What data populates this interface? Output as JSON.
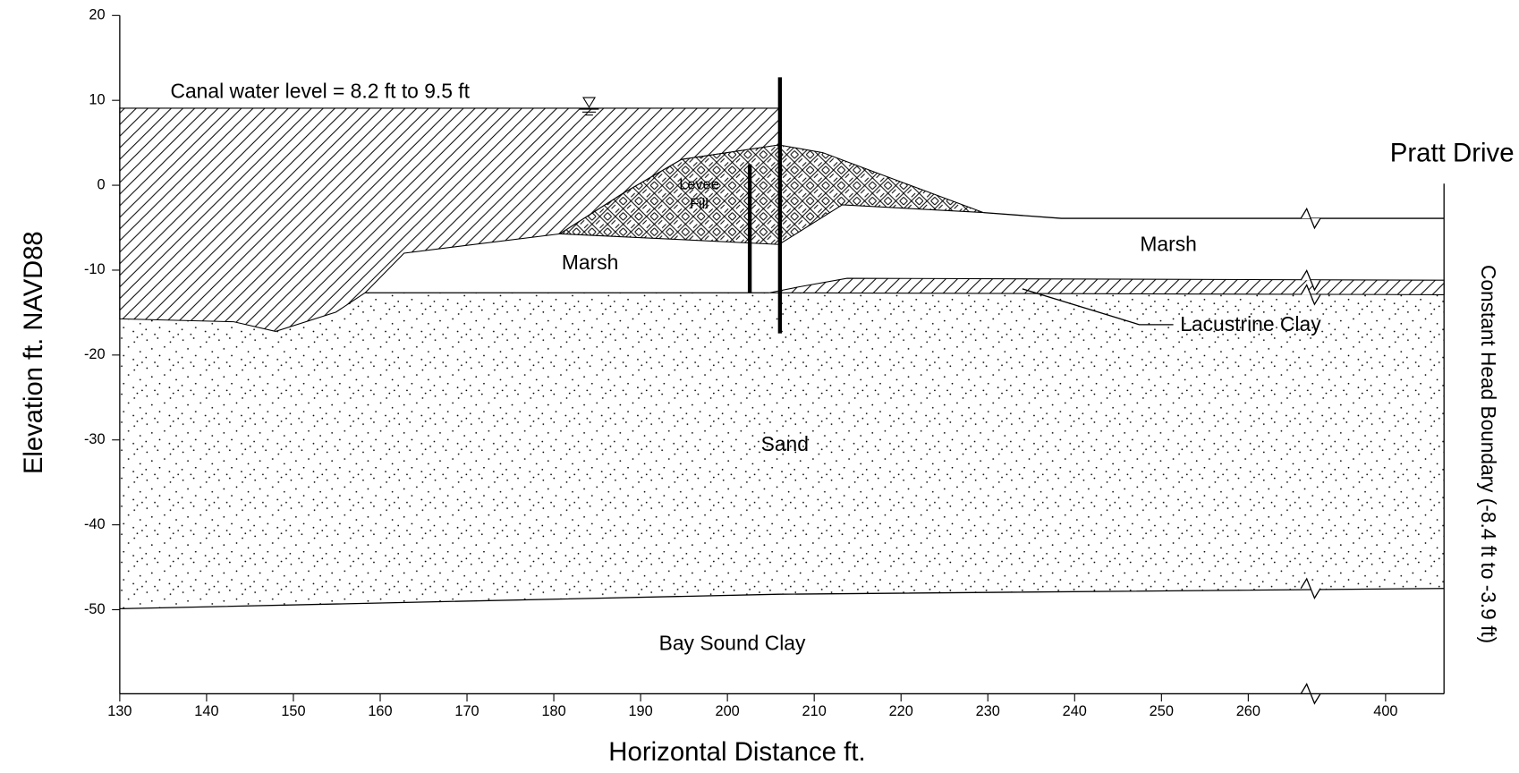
{
  "axes": {
    "x_label": "Horizontal Distance ft.",
    "y_label": "Elevation ft. NAVD88",
    "x_ticks": [
      130,
      140,
      150,
      160,
      170,
      180,
      190,
      200,
      210,
      220,
      230,
      240,
      250,
      260,
      400
    ],
    "y_ticks": [
      20,
      10,
      0,
      -10,
      -20,
      -30,
      -40,
      -50
    ]
  },
  "labels": {
    "canal_water_level": "Canal water level = 8.2 ft to 9.5 ft",
    "levee_fill": [
      "Levee",
      "Fill"
    ],
    "marsh_left": "Marsh",
    "marsh_right": "Marsh",
    "lacustrine_clay": "Lacustrine Clay",
    "sand": "Sand",
    "bay_sound_clay": "Bay Sound Clay",
    "pratt_drive": "Pratt Drive",
    "boundary": "Constant Head Boundary (-8.4 ft to -3.9 ft)"
  }
}
